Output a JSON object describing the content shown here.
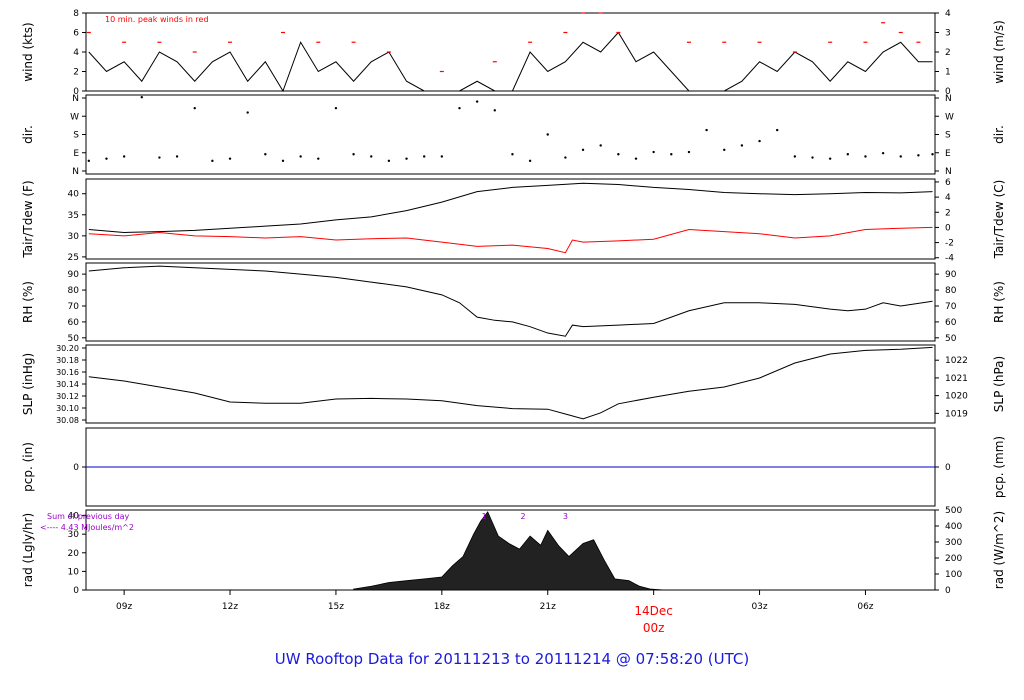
{
  "title": "UW Rooftop Data for 20111213  to  20111214 @ 07:58:20  (UTC)",
  "colors": {
    "frame": "#000000",
    "red": "#ff0000",
    "blue": "#0000cc",
    "purple": "#9900cc",
    "title": "#1a1adb"
  },
  "chart_data": {
    "type": "line",
    "x_ticks": [
      "09z",
      "12z",
      "15z",
      "18z",
      "21z",
      "00z",
      "03z",
      "06z"
    ],
    "x_range_hours_utc": [
      7.92,
      31.97
    ],
    "date_marker": {
      "label": "14Dec",
      "sublabel": "00z"
    },
    "panels": [
      {
        "id": "wind",
        "ylabel_left": "wind (kts)",
        "ylabel_right": "wind (m/s)",
        "ylim": [
          0,
          8
        ],
        "left_ticks": [
          "0",
          "2",
          "4",
          "6",
          "8"
        ],
        "right_ticks": [
          "0",
          "1",
          "2",
          "3",
          "4"
        ],
        "annotation": "10 min. peak winds in red",
        "series": [
          {
            "name": "wind",
            "color": "#000000",
            "x": [
              8,
              8.5,
              9,
              9.5,
              10,
              10.5,
              11,
              11.5,
              12,
              12.5,
              13,
              13.5,
              14,
              14.5,
              15,
              15.5,
              16,
              16.5,
              17,
              17.5,
              18,
              18.5,
              19,
              19.5,
              20,
              20.5,
              21,
              21.5,
              22,
              22.5,
              23,
              23.5,
              24,
              24.5,
              25,
              25.5,
              26,
              26.5,
              27,
              27.5,
              28,
              28.5,
              29,
              29.5,
              30,
              30.5,
              31,
              31.5,
              31.9
            ],
            "y": [
              4,
              2,
              3,
              1,
              4,
              3,
              1,
              3,
              4,
              1,
              3,
              0,
              5,
              2,
              3,
              1,
              3,
              4,
              1,
              0,
              0,
              0,
              1,
              0,
              0,
              4,
              2,
              3,
              5,
              4,
              6,
              3,
              4,
              2,
              0,
              0,
              0,
              1,
              3,
              2,
              4,
              3,
              1,
              3,
              2,
              4,
              5,
              3,
              3
            ]
          },
          {
            "name": "10 min. peak",
            "color": "#ff0000",
            "x": [
              8,
              9,
              10,
              11,
              12,
              13.5,
              14.5,
              15.5,
              16.5,
              18,
              19.5,
              20.5,
              21.5,
              22,
              22.5,
              23,
              25,
              26,
              27,
              28,
              29,
              30,
              30.5,
              31,
              31.5
            ],
            "y": [
              6,
              5,
              5,
              4,
              5,
              6,
              5,
              5,
              4,
              2,
              3,
              5,
              6,
              8,
              8,
              6,
              5,
              5,
              5,
              4,
              5,
              5,
              7,
              6,
              5
            ]
          }
        ]
      },
      {
        "id": "dir",
        "ylabel_left": "dir.",
        "ylabel_right": "dir.",
        "ylim": [
          0,
          360
        ],
        "left_ticks": [
          "N",
          "E",
          "S",
          "W",
          "N"
        ],
        "right_ticks": [
          "N",
          "E",
          "S",
          "W",
          "N"
        ],
        "series": [
          {
            "name": "direction",
            "color": "#000000",
            "x": [
              8,
              8.5,
              9,
              9.5,
              10,
              10.5,
              11,
              11.5,
              12,
              12.5,
              13,
              13.5,
              14,
              14.5,
              15,
              15.5,
              16,
              16.5,
              17,
              17.5,
              18,
              18.5,
              19,
              19.5,
              20,
              20.5,
              21,
              21.5,
              22,
              22.5,
              23,
              23.5,
              24,
              24.5,
              25,
              25.5,
              26,
              26.5,
              27,
              27.5,
              28,
              28.5,
              29,
              29.5,
              30,
              30.5,
              31,
              31.5,
              31.9
            ],
            "y": [
              60,
              70,
              80,
              350,
              75,
              80,
              300,
              60,
              70,
              280,
              90,
              60,
              80,
              70,
              300,
              90,
              80,
              60,
              70,
              80,
              80,
              300,
              330,
              290,
              90,
              60,
              180,
              75,
              110,
              130,
              90,
              70,
              100,
              90,
              100,
              200,
              110,
              130,
              150,
              200,
              80,
              75,
              70,
              90,
              80,
              95,
              80,
              85,
              90
            ]
          }
        ]
      },
      {
        "id": "temp",
        "ylabel_left": "Tair/Tdew (F)",
        "ylabel_right": "Tair/Tdew (C)",
        "ylim": [
          24.5,
          43.5
        ],
        "left_ticks": [
          "25",
          "30",
          "35",
          "40"
        ],
        "right_ticks": [
          "-4",
          "-2",
          "0",
          "2",
          "4",
          "6"
        ],
        "series": [
          {
            "name": "Tair",
            "color": "#000000",
            "x": [
              8,
              9,
              10,
              11,
              12,
              13,
              14,
              15,
              16,
              17,
              18,
              19,
              20,
              21,
              22,
              23,
              24,
              25,
              26,
              27,
              28,
              29,
              30,
              31,
              31.9
            ],
            "y": [
              31.5,
              30.8,
              31,
              31.3,
              31.8,
              32.3,
              32.8,
              33.8,
              34.5,
              36,
              38,
              40.5,
              41.5,
              42,
              42.5,
              42.2,
              41.5,
              41,
              40.3,
              40,
              39.8,
              40,
              40.3,
              40.2,
              40.5
            ]
          },
          {
            "name": "Tdew",
            "color": "#ff0000",
            "x": [
              8,
              9,
              10,
              11,
              12,
              13,
              14,
              15,
              16,
              17,
              18,
              19,
              20,
              21,
              21.5,
              21.7,
              22,
              23,
              24,
              25,
              26,
              27,
              28,
              29,
              30,
              31,
              31.9
            ],
            "y": [
              30.5,
              30,
              30.8,
              30,
              29.8,
              29.5,
              29.8,
              29,
              29.3,
              29.5,
              28.5,
              27.5,
              27.8,
              27,
              26,
              29,
              28.5,
              28.8,
              29.2,
              31.5,
              31,
              30.5,
              29.5,
              30,
              31.5,
              31.8,
              32
            ]
          }
        ]
      },
      {
        "id": "rh",
        "ylabel_left": "RH (%)",
        "ylabel_right": "RH (%)",
        "ylim": [
          48,
          97
        ],
        "left_ticks": [
          "50",
          "60",
          "70",
          "80",
          "90"
        ],
        "right_ticks": [
          "50",
          "60",
          "70",
          "80",
          "90"
        ],
        "series": [
          {
            "name": "RH",
            "color": "#000000",
            "x": [
              8,
              9,
              10,
              11,
              12,
              13,
              14,
              15,
              16,
              17,
              18,
              18.5,
              19,
              19.5,
              20,
              20.5,
              21,
              21.5,
              21.7,
              22,
              23,
              24,
              25,
              26,
              27,
              28,
              29,
              29.5,
              30,
              30.5,
              31,
              31.9
            ],
            "y": [
              92,
              94,
              95,
              94,
              93,
              92,
              90,
              88,
              85,
              82,
              77,
              72,
              63,
              61,
              60,
              57,
              53,
              51,
              58,
              57,
              58,
              59,
              67,
              72,
              72,
              71,
              68,
              67,
              68,
              72,
              70,
              73
            ]
          }
        ]
      },
      {
        "id": "slp",
        "ylabel_left": "SLP (inHg)",
        "ylabel_right": "SLP (hPa)",
        "ylim": [
          30.075,
          30.205
        ],
        "left_ticks": [
          "30.08",
          "30.10",
          "30.12",
          "30.14",
          "30.16",
          "30.18",
          "30.20"
        ],
        "right_ticks": [
          "1019",
          "1020",
          "1021",
          "1022"
        ],
        "series": [
          {
            "name": "SLP",
            "color": "#000000",
            "x": [
              8,
              9,
              10,
              11,
              12,
              13,
              14,
              15,
              16,
              17,
              18,
              19,
              20,
              21,
              21.5,
              22,
              22.5,
              23,
              24,
              25,
              26,
              27,
              28,
              29,
              30,
              31,
              31.9
            ],
            "y": [
              30.152,
              30.145,
              30.135,
              30.125,
              30.11,
              30.108,
              30.108,
              30.115,
              30.116,
              30.115,
              30.112,
              30.104,
              30.099,
              30.098,
              30.09,
              30.082,
              30.092,
              30.107,
              30.118,
              30.128,
              30.135,
              30.15,
              30.175,
              30.19,
              30.196,
              30.198,
              30.201
            ]
          }
        ]
      },
      {
        "id": "pcp",
        "ylabel_left": "pcp. (in)",
        "ylabel_right": "pcp. (mm)",
        "ylim": [
          -1,
          1
        ],
        "left_ticks": [
          "0"
        ],
        "right_ticks": [
          "0"
        ],
        "series": [
          {
            "name": "pcp",
            "color": "#0000cc",
            "x": [
              7.92,
              31.97
            ],
            "y": [
              0,
              0
            ]
          }
        ]
      },
      {
        "id": "rad",
        "ylabel_left": "rad (Lgly/hr)",
        "ylabel_right": "rad (W/m^2)",
        "ylim": [
          0,
          43
        ],
        "left_ticks": [
          "0",
          "10",
          "20",
          "30",
          "40"
        ],
        "right_ticks": [
          "0",
          "100",
          "200",
          "300",
          "400",
          "500"
        ],
        "annotation_lines": [
          "Sum of previous day",
          "<---- 4.43 MJoules/m^2"
        ],
        "peak_markers": [
          "1",
          "2",
          "3"
        ],
        "series": [
          {
            "name": "radiation",
            "color": "#000000",
            "x": [
              15.5,
              16,
              16.5,
              17,
              17.5,
              18,
              18.3,
              18.6,
              18.9,
              19.1,
              19.3,
              19.6,
              19.9,
              20.2,
              20.5,
              20.8,
              21,
              21.3,
              21.6,
              22,
              22.3,
              22.6,
              22.9,
              23.3,
              23.6,
              23.9,
              24.3
            ],
            "y": [
              0.5,
              2,
              4,
              5,
              6,
              7,
              13,
              18,
              30,
              37,
              42,
              29,
              25,
              22,
              29,
              24,
              32,
              24,
              18,
              25,
              27,
              16,
              6,
              5,
              2,
              0.5,
              0
            ]
          }
        ]
      }
    ]
  }
}
